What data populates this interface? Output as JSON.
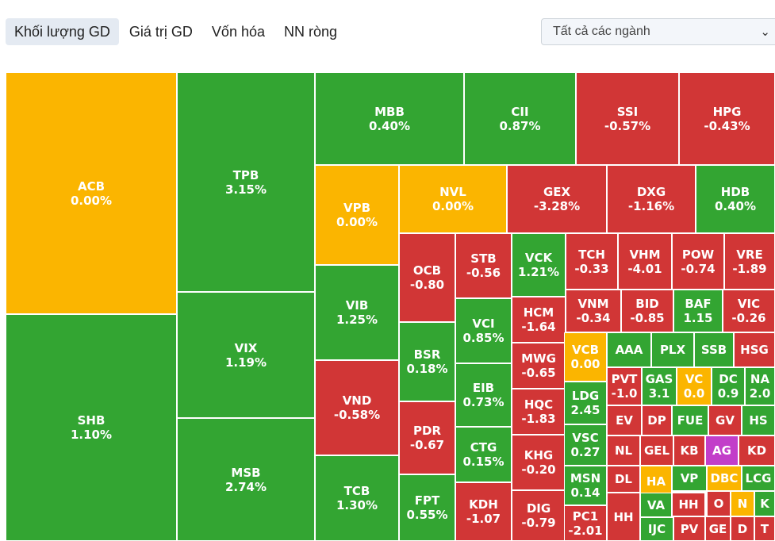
{
  "tabs": [
    {
      "label": "Khối lượng GD",
      "active": true
    },
    {
      "label": "Giá trị GD",
      "active": false
    },
    {
      "label": "Vốn hóa",
      "active": false
    },
    {
      "label": "NN ròng",
      "active": false
    }
  ],
  "sector_select": {
    "selected": "Tất cả các ngành"
  },
  "colors": {
    "up": "#33a532",
    "down": "#d13636",
    "unchanged": "#fbb500",
    "ceiling": "#c23ec9"
  },
  "treemap": [
    {
      "symbol": "ACB",
      "change": "0.00%",
      "status": "unchanged"
    },
    {
      "symbol": "SHB",
      "change": "1.10%",
      "status": "up"
    },
    {
      "symbol": "TPB",
      "change": "3.15%",
      "status": "up"
    },
    {
      "symbol": "VIX",
      "change": "1.19%",
      "status": "up"
    },
    {
      "symbol": "MSB",
      "change": "2.74%",
      "status": "up"
    },
    {
      "symbol": "MBB",
      "change": "0.40%",
      "status": "up"
    },
    {
      "symbol": "CII",
      "change": "0.87%",
      "status": "up"
    },
    {
      "symbol": "SSI",
      "change": "-0.57%",
      "status": "down"
    },
    {
      "symbol": "HPG",
      "change": "-0.43%",
      "status": "down"
    },
    {
      "symbol": "VPB",
      "change": "0.00%",
      "status": "unchanged"
    },
    {
      "symbol": "NVL",
      "change": "0.00%",
      "status": "unchanged"
    },
    {
      "symbol": "GEX",
      "change": "-3.28%",
      "status": "down"
    },
    {
      "symbol": "DXG",
      "change": "-1.16%",
      "status": "down"
    },
    {
      "symbol": "HDB",
      "change": "0.40%",
      "status": "up"
    },
    {
      "symbol": "VIB",
      "change": "1.25%",
      "status": "up"
    },
    {
      "symbol": "VND",
      "change": "-0.58%",
      "status": "down"
    },
    {
      "symbol": "TCB",
      "change": "1.30%",
      "status": "up"
    },
    {
      "symbol": "OCB",
      "change": "-0.80",
      "status": "down"
    },
    {
      "symbol": "BSR",
      "change": "0.18%",
      "status": "up"
    },
    {
      "symbol": "PDR",
      "change": "-0.67",
      "status": "down"
    },
    {
      "symbol": "FPT",
      "change": "0.55%",
      "status": "up"
    },
    {
      "symbol": "STB",
      "change": "-0.56",
      "status": "down"
    },
    {
      "symbol": "VCI",
      "change": "0.85%",
      "status": "up"
    },
    {
      "symbol": "EIB",
      "change": "0.73%",
      "status": "up"
    },
    {
      "symbol": "CTG",
      "change": "0.15%",
      "status": "up"
    },
    {
      "symbol": "KDH",
      "change": "-1.07",
      "status": "down"
    },
    {
      "symbol": "VCK",
      "change": "1.21%",
      "status": "up"
    },
    {
      "symbol": "HCM",
      "change": "-1.64",
      "status": "down"
    },
    {
      "symbol": "MWG",
      "change": "-0.65",
      "status": "down"
    },
    {
      "symbol": "HQC",
      "change": "-1.83",
      "status": "down"
    },
    {
      "symbol": "KHG",
      "change": "-0.20",
      "status": "down"
    },
    {
      "symbol": "DIG",
      "change": "-0.79",
      "status": "down"
    },
    {
      "symbol": "TCH",
      "change": "-0.33",
      "status": "down"
    },
    {
      "symbol": "VHM",
      "change": "-4.01",
      "status": "down"
    },
    {
      "symbol": "POW",
      "change": "-0.74",
      "status": "down"
    },
    {
      "symbol": "VRE",
      "change": "-1.89",
      "status": "down"
    },
    {
      "symbol": "VNM",
      "change": "-0.34",
      "status": "down"
    },
    {
      "symbol": "BID",
      "change": "-0.85",
      "status": "down"
    },
    {
      "symbol": "BAF",
      "change": "1.15",
      "status": "up"
    },
    {
      "symbol": "VIC",
      "change": "-0.26",
      "status": "down"
    },
    {
      "symbol": "VCB",
      "change": "0.00",
      "status": "unchanged"
    },
    {
      "symbol": "LDG",
      "change": "2.45",
      "status": "up"
    },
    {
      "symbol": "VSC",
      "change": "0.27",
      "status": "up"
    },
    {
      "symbol": "MSN",
      "change": "0.14",
      "status": "up"
    },
    {
      "symbol": "PC1",
      "change": "-2.01",
      "status": "down"
    },
    {
      "symbol": "AAA",
      "change": "",
      "status": "up"
    },
    {
      "symbol": "PLX",
      "change": "",
      "status": "up"
    },
    {
      "symbol": "SSB",
      "change": "",
      "status": "up"
    },
    {
      "symbol": "HSG",
      "change": "",
      "status": "down"
    },
    {
      "symbol": "PVT",
      "change": "-1.0",
      "status": "down"
    },
    {
      "symbol": "GAS",
      "change": "3.1",
      "status": "up"
    },
    {
      "symbol": "VC",
      "change": "0.0",
      "status": "unchanged"
    },
    {
      "symbol": "DC",
      "change": "0.9",
      "status": "up"
    },
    {
      "symbol": "NA",
      "change": "2.0",
      "status": "up"
    },
    {
      "symbol": "EV",
      "change": "",
      "status": "down"
    },
    {
      "symbol": "DP",
      "change": "",
      "status": "down"
    },
    {
      "symbol": "FUE",
      "change": "",
      "status": "up"
    },
    {
      "symbol": "GV",
      "change": "",
      "status": "down"
    },
    {
      "symbol": "HS",
      "change": "",
      "status": "up"
    },
    {
      "symbol": "NL",
      "change": "",
      "status": "down"
    },
    {
      "symbol": "GEL",
      "change": "",
      "status": "down"
    },
    {
      "symbol": "KB",
      "change": "",
      "status": "down"
    },
    {
      "symbol": "AG",
      "change": "",
      "status": "ceiling"
    },
    {
      "symbol": "KD",
      "change": "",
      "status": "down"
    },
    {
      "symbol": "DL",
      "change": "",
      "status": "down"
    },
    {
      "symbol": "HA",
      "change": "",
      "status": "unchanged"
    },
    {
      "symbol": "VP",
      "change": "",
      "status": "up"
    },
    {
      "symbol": "DBC",
      "change": "",
      "status": "unchanged"
    },
    {
      "symbol": "LCG",
      "change": "",
      "status": "up"
    },
    {
      "symbol": "VA",
      "change": "",
      "status": "up"
    },
    {
      "symbol": "HH",
      "change": "",
      "status": "down"
    },
    {
      "symbol": "O",
      "change": "",
      "status": "down"
    },
    {
      "symbol": "N",
      "change": "",
      "status": "unchanged"
    },
    {
      "symbol": "K",
      "change": "",
      "status": "up"
    },
    {
      "symbol": "HH",
      "change": "",
      "status": "down"
    },
    {
      "symbol": "IJC",
      "change": "",
      "status": "up"
    },
    {
      "symbol": "PV",
      "change": "",
      "status": "down"
    },
    {
      "symbol": "GE",
      "change": "",
      "status": "down"
    },
    {
      "symbol": "D",
      "change": "",
      "status": "down"
    },
    {
      "symbol": "T",
      "change": "",
      "status": "down"
    }
  ]
}
